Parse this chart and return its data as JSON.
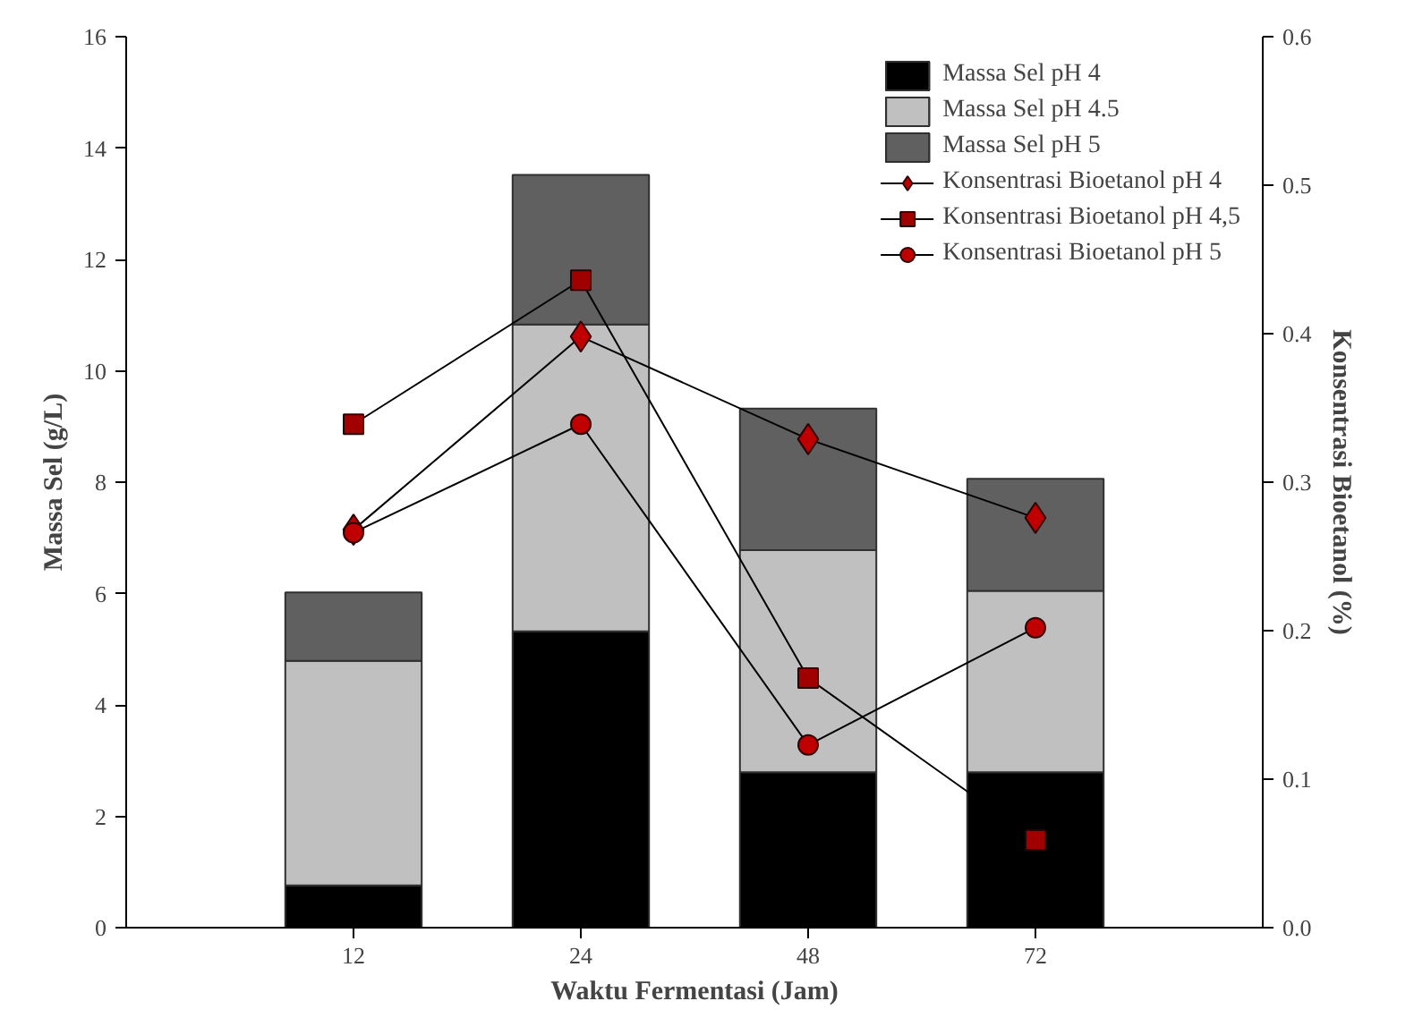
{
  "chart_data": {
    "type": "bar",
    "stacked": true,
    "xlabel": "Waktu Fermentasi (Jam)",
    "ylabel": "Massa Sel (g/L)",
    "y2label": "Konsentrasi Bioetanol (%)",
    "categories": [
      "12",
      "24",
      "48",
      "72"
    ],
    "ylim": [
      0,
      16
    ],
    "yticks": [
      0,
      2,
      4,
      6,
      8,
      10,
      12,
      14,
      16
    ],
    "y2lim": [
      0,
      0.6
    ],
    "y2ticks": [
      {
        "value": 0,
        "label": "0.0"
      },
      0.1,
      0.2,
      0.3,
      0.4,
      0.5,
      0.6
    ],
    "grid": false,
    "legend": "top right",
    "series": [
      {
        "name": "Massa Sel pH 4",
        "color": "#000000",
        "values": [
          0.76,
          5.32,
          2.79,
          2.79
        ]
      },
      {
        "name": "Massa Sel pH 4.5",
        "color": "#c0c0c0",
        "values": [
          4.03,
          5.51,
          3.99,
          3.26
        ]
      },
      {
        "name": "Massa Sel pH 5",
        "color": "#606060",
        "values": [
          1.23,
          2.69,
          2.54,
          2.01
        ]
      },
      {
        "name": "Konsentrasi Bioetanol pH 4",
        "type": "line",
        "axis": "y2",
        "marker": "diamond",
        "color": "#c00000",
        "values": [
          0.268,
          0.398,
          0.329,
          0.276
        ]
      },
      {
        "name": "Konsentrasi Bioetanol pH 4,5",
        "type": "line",
        "axis": "y2",
        "marker": "square",
        "color": "#a00000",
        "values": [
          0.339,
          0.436,
          0.168,
          0.059
        ]
      },
      {
        "name": "Konsentrasi Bioetanol pH 5",
        "type": "line",
        "axis": "y2",
        "marker": "circle",
        "color": "#c00000",
        "values": [
          0.266,
          0.339,
          0.123,
          0.202
        ]
      }
    ]
  }
}
